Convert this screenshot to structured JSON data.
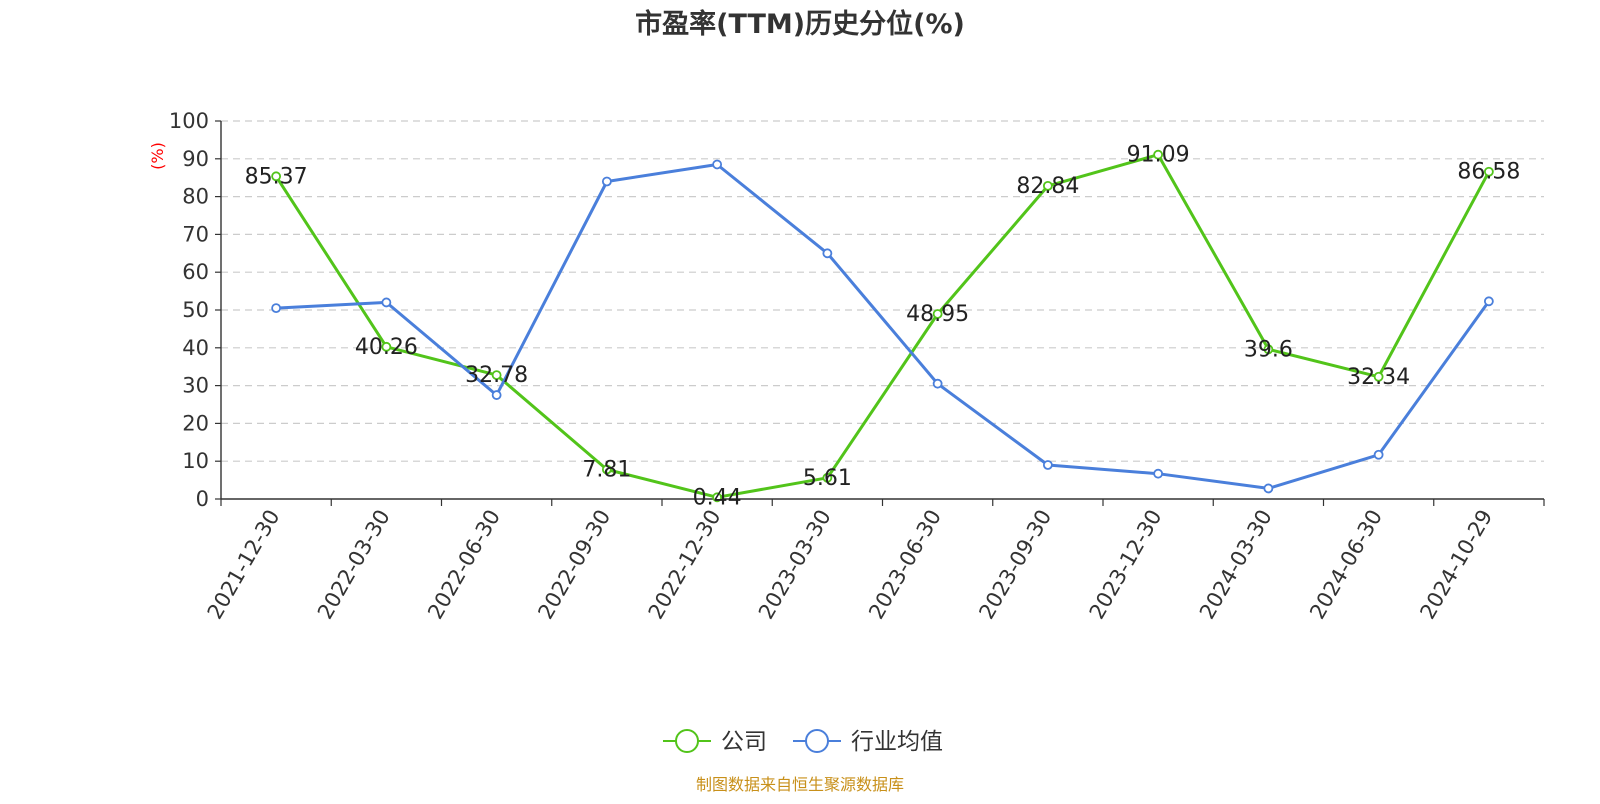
{
  "chart_data": {
    "type": "line",
    "title": "市盈率(TTM)历史分位(%)",
    "ylabel": "(%)",
    "ylim": [
      0,
      100
    ],
    "yticks": [
      0,
      10,
      20,
      30,
      40,
      50,
      60,
      70,
      80,
      90,
      100
    ],
    "grid": true,
    "legend_position": "bottom",
    "categories": [
      "2021-12-30",
      "2022-03-30",
      "2022-06-30",
      "2022-09-30",
      "2022-12-30",
      "2023-03-30",
      "2023-06-30",
      "2023-09-30",
      "2023-12-30",
      "2024-03-30",
      "2024-06-30",
      "2024-10-29"
    ],
    "series": [
      {
        "name": "公司",
        "color": "#52c41a",
        "show_labels": true,
        "values": [
          85.37,
          40.26,
          32.78,
          7.81,
          0.44,
          5.61,
          48.95,
          82.84,
          91.09,
          39.6,
          32.34,
          86.58
        ]
      },
      {
        "name": "行业均值",
        "color": "#4a7fdb",
        "show_labels": false,
        "values": [
          50.5,
          52.0,
          27.5,
          84.0,
          88.5,
          65.0,
          30.5,
          9.0,
          6.7,
          2.8,
          11.7,
          52.3
        ]
      }
    ]
  },
  "footer": {
    "source": "制图数据来自恒生聚源数据库",
    "color": "#c8901a"
  }
}
